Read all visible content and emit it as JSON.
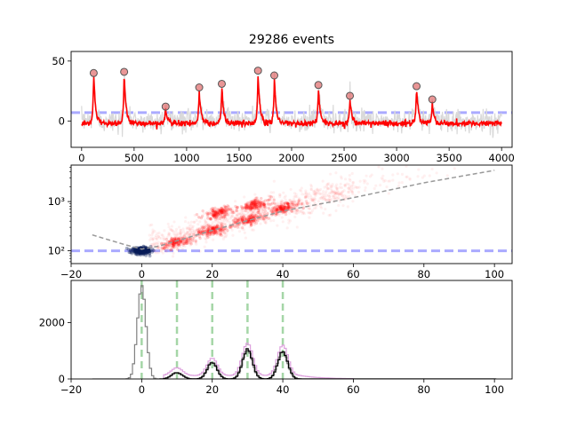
{
  "figure": {
    "title": "29286 events"
  },
  "colors": {
    "trace_raw": "#d9d9d9",
    "trace_smooth": "#ff0000",
    "peak_marker_fill": "#e06a6a",
    "threshold": "#aaaaff",
    "scatter_points": "#ff0000",
    "noise_cluster": "#0a1e5a",
    "fit_line": "#999999",
    "hist_all": "#808080",
    "hist_selected": "#000000",
    "hist_model": "#dda0dd",
    "guide_lines": "#a5d6a7"
  },
  "chart_data": [
    {
      "type": "line",
      "xlim": [
        -100,
        4100
      ],
      "ylim": [
        -22,
        58
      ],
      "x_ticks": [
        0,
        500,
        1000,
        1500,
        2000,
        2500,
        3000,
        3500,
        4000
      ],
      "y_ticks": [
        0,
        50
      ],
      "threshold_y": 7,
      "peaks_x": [
        115,
        405,
        800,
        1120,
        1335,
        1680,
        1835,
        2255,
        2555,
        3190,
        3340
      ],
      "peaks_y": [
        40,
        41,
        12,
        28,
        31,
        42,
        38,
        30,
        21,
        29,
        18
      ],
      "baseline_y": 0,
      "noise_level": 5
    },
    {
      "type": "scatter",
      "y_scale": "log",
      "xlim": [
        -20,
        105
      ],
      "ylim": [
        55,
        5500
      ],
      "x_ticks": [
        -20,
        0,
        20,
        40,
        60,
        80,
        100
      ],
      "y_ticks": [
        100,
        1000
      ],
      "y_tick_labels": [
        "10²",
        "10³"
      ],
      "threshold_y": 100,
      "noise_cluster": {
        "x": 0,
        "y": 100
      },
      "clusters": [
        {
          "x": 10,
          "y": 150
        },
        {
          "x": 20,
          "y": 260
        },
        {
          "x": 30,
          "y": 420
        },
        {
          "x": 40,
          "y": 720
        },
        {
          "x": 22,
          "y": 600
        },
        {
          "x": 32,
          "y": 850
        }
      ],
      "fit_line": {
        "x": [
          -14,
          -5,
          0,
          5,
          10,
          20,
          30,
          40,
          60,
          80,
          100
        ],
        "y": [
          210,
          135,
          108,
          125,
          160,
          260,
          410,
          640,
          1200,
          2400,
          4300
        ]
      }
    },
    {
      "type": "histogram",
      "xlim": [
        -20,
        105
      ],
      "ylim": [
        0,
        3500
      ],
      "x_ticks": [
        -20,
        0,
        20,
        40,
        60,
        80,
        100
      ],
      "y_ticks": [
        0,
        2000
      ],
      "guide_lines_x": [
        0,
        10,
        20,
        30,
        40
      ],
      "hist_all_peaks": [
        {
          "x": 0,
          "height": 3300,
          "width": 1.2
        },
        {
          "x": 10,
          "height": 230,
          "width": 1.5
        },
        {
          "x": 20,
          "height": 580,
          "width": 1.4
        },
        {
          "x": 30,
          "height": 1040,
          "width": 1.4
        },
        {
          "x": 40,
          "height": 980,
          "width": 1.4
        }
      ],
      "hist_model_peaks": [
        {
          "x": 10,
          "height": 280,
          "width": 1.6
        },
        {
          "x": 20,
          "height": 620,
          "width": 1.5
        },
        {
          "x": 30,
          "height": 1150,
          "width": 1.5
        },
        {
          "x": 40,
          "height": 1080,
          "width": 1.5
        }
      ],
      "model_floor": 120
    }
  ]
}
